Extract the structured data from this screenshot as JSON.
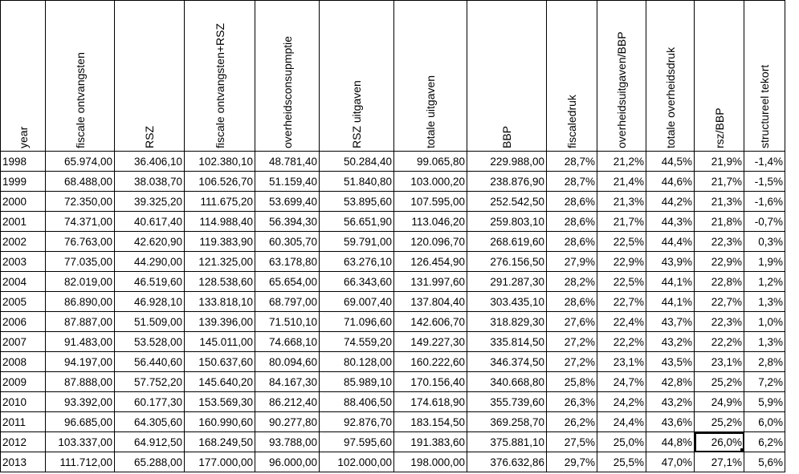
{
  "headers": [
    "year",
    "fiscale ontvangsten",
    "RSZ",
    "fiscale ontvangsten+RSZ",
    "overheidsconsupmptie",
    "RSZ uitgaven",
    "totale uitgaven",
    "BBP",
    "fiscaledruk",
    "overheidsuitgaven/BBP",
    "totale overheidsdruk",
    "rsz/BBP",
    "structureel tekort"
  ],
  "rows": [
    [
      "1998",
      "65.974,00",
      "36.406,10",
      "102.380,10",
      "48.781,40",
      "50.284,40",
      "99.065,80",
      "229.988,00",
      "28,7%",
      "21,2%",
      "44,5%",
      "21,9%",
      "-1,4%"
    ],
    [
      "1999",
      "68.488,00",
      "38.038,70",
      "106.526,70",
      "51.159,40",
      "51.840,80",
      "103.000,20",
      "238.876,90",
      "28,7%",
      "21,4%",
      "44,6%",
      "21,7%",
      "-1,5%"
    ],
    [
      "2000",
      "72.350,00",
      "39.325,20",
      "111.675,20",
      "53.699,40",
      "53.895,60",
      "107.595,00",
      "252.542,50",
      "28,6%",
      "21,3%",
      "44,2%",
      "21,3%",
      "-1,6%"
    ],
    [
      "2001",
      "74.371,00",
      "40.617,40",
      "114.988,40",
      "56.394,30",
      "56.651,90",
      "113.046,20",
      "259.803,10",
      "28,6%",
      "21,7%",
      "44,3%",
      "21,8%",
      "-0,7%"
    ],
    [
      "2002",
      "76.763,00",
      "42.620,90",
      "119.383,90",
      "60.305,70",
      "59.791,00",
      "120.096,70",
      "268.619,60",
      "28,6%",
      "22,5%",
      "44,4%",
      "22,3%",
      "0,3%"
    ],
    [
      "2003",
      "77.035,00",
      "44.290,00",
      "121.325,00",
      "63.178,80",
      "63.276,10",
      "126.454,90",
      "276.156,50",
      "27,9%",
      "22,9%",
      "43,9%",
      "22,9%",
      "1,9%"
    ],
    [
      "2004",
      "82.019,00",
      "46.519,60",
      "128.538,60",
      "65.654,00",
      "66.343,60",
      "131.997,60",
      "291.287,30",
      "28,2%",
      "22,5%",
      "44,1%",
      "22,8%",
      "1,2%"
    ],
    [
      "2005",
      "86.890,00",
      "46.928,10",
      "133.818,10",
      "68.797,00",
      "69.007,40",
      "137.804,40",
      "303.435,10",
      "28,6%",
      "22,7%",
      "44,1%",
      "22,7%",
      "1,3%"
    ],
    [
      "2006",
      "87.887,00",
      "51.509,00",
      "139.396,00",
      "71.510,10",
      "71.096,60",
      "142.606,70",
      "318.829,30",
      "27,6%",
      "22,4%",
      "43,7%",
      "22,3%",
      "1,0%"
    ],
    [
      "2007",
      "91.483,00",
      "53.528,00",
      "145.011,00",
      "74.668,10",
      "74.559,20",
      "149.227,30",
      "335.814,50",
      "27,2%",
      "22,2%",
      "43,2%",
      "22,2%",
      "1,3%"
    ],
    [
      "2008",
      "94.197,00",
      "56.440,60",
      "150.637,60",
      "80.094,60",
      "80.128,00",
      "160.222,60",
      "346.374,50",
      "27,2%",
      "23,1%",
      "43,5%",
      "23,1%",
      "2,8%"
    ],
    [
      "2009",
      "87.888,00",
      "57.752,20",
      "145.640,20",
      "84.167,30",
      "85.989,10",
      "170.156,40",
      "340.668,80",
      "25,8%",
      "24,7%",
      "42,8%",
      "25,2%",
      "7,2%"
    ],
    [
      "2010",
      "93.392,00",
      "60.177,30",
      "153.569,30",
      "86.212,40",
      "88.406,50",
      "174.618,90",
      "355.739,60",
      "26,3%",
      "24,2%",
      "43,2%",
      "24,9%",
      "5,9%"
    ],
    [
      "2011",
      "96.685,00",
      "64.305,60",
      "160.990,60",
      "90.277,80",
      "92.876,70",
      "183.154,50",
      "369.258,70",
      "26,2%",
      "24,4%",
      "43,6%",
      "25,2%",
      "6,0%"
    ],
    [
      "2012",
      "103.337,00",
      "64.912,50",
      "168.249,50",
      "93.788,00",
      "97.595,60",
      "191.383,60",
      "375.881,10",
      "27,5%",
      "25,0%",
      "44,8%",
      "26,0%",
      "6,2%"
    ],
    [
      "2013",
      "111.712,00",
      "65.288,00",
      "177.000,00",
      "96.000,00",
      "102.000,00",
      "198.000,00",
      "376.632,86",
      "29,7%",
      "25,5%",
      "47,0%",
      "27,1%",
      "5,6%"
    ]
  ],
  "selected_cell": {
    "row": 14,
    "col": 11
  }
}
